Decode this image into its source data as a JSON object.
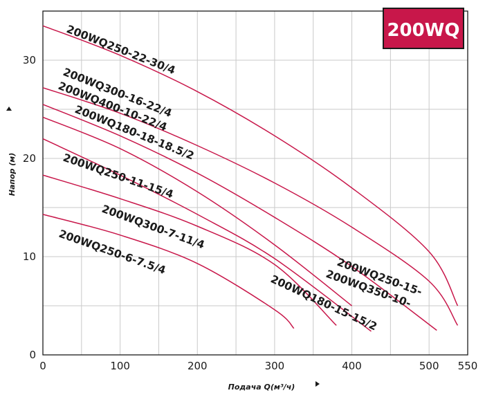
{
  "chart_data": {
    "type": "line",
    "badge": "200WQ",
    "xlabel": "Подача Q(м³/ч)",
    "ylabel": "Напор (м)",
    "xlim": [
      0,
      550
    ],
    "ylim": [
      0,
      35
    ],
    "xticks": [
      0,
      100,
      200,
      300,
      400,
      500,
      550
    ],
    "yticks": [
      0,
      10,
      20,
      30
    ],
    "grid": true,
    "line_color": "#c8174a",
    "series": [
      {
        "name": "200WQ250-22-30/4",
        "points": [
          [
            0,
            33.5
          ],
          [
            100,
            30.5
          ],
          [
            200,
            26.8
          ],
          [
            300,
            22.3
          ],
          [
            400,
            17.0
          ],
          [
            500,
            10.5
          ],
          [
            537,
            5.0
          ]
        ]
      },
      {
        "name": "200WQ300-16-22/4",
        "points": [
          [
            0,
            27.2
          ],
          [
            100,
            24.6
          ],
          [
            200,
            21.3
          ],
          [
            300,
            17.5
          ],
          [
            400,
            13.0
          ],
          [
            500,
            7.5
          ],
          [
            537,
            3.0
          ]
        ]
      },
      {
        "name": "200WQ400-10-22/4",
        "points": [
          [
            0,
            25.5
          ],
          [
            100,
            22.3
          ],
          [
            200,
            18.5
          ],
          [
            300,
            14.0
          ],
          [
            400,
            9.0
          ],
          [
            510,
            2.5
          ]
        ]
      },
      {
        "name": "200WQ180-18-18.5/2",
        "points": [
          [
            0,
            24.2
          ],
          [
            100,
            21.0
          ],
          [
            200,
            16.6
          ],
          [
            300,
            11.2
          ],
          [
            400,
            5.0
          ]
        ]
      },
      {
        "name": "200WQ250-11-15/4",
        "points": [
          [
            0,
            22.0
          ],
          [
            100,
            18.3
          ],
          [
            200,
            14.3
          ],
          [
            300,
            9.8
          ],
          [
            425,
            2.4
          ]
        ]
      },
      {
        "name": "200WQ300-7-11/4",
        "points": [
          [
            0,
            18.3
          ],
          [
            100,
            15.9
          ],
          [
            200,
            13.1
          ],
          [
            300,
            9.2
          ],
          [
            380,
            3.0
          ]
        ]
      },
      {
        "name": "200WQ250-6-7.5/4",
        "points": [
          [
            0,
            14.3
          ],
          [
            100,
            12.2
          ],
          [
            200,
            9.3
          ],
          [
            300,
            4.6
          ],
          [
            325,
            2.7
          ]
        ]
      }
    ],
    "labels": [
      {
        "text": "200WQ250-22-30/4"
      },
      {
        "text": "200WQ300-16-22/4"
      },
      {
        "text": "200WQ400-10-22/4"
      },
      {
        "text": "200WQ180-18-18.5/2"
      },
      {
        "text": "200WQ250-11-15/4"
      },
      {
        "text": "200WQ300-7-11/4"
      },
      {
        "text": "200WQ250-6-7.5/4"
      },
      {
        "text": "200WQ250-15-"
      },
      {
        "text": "200WQ350-10-"
      },
      {
        "text": "200WQ180-15-15/2"
      }
    ]
  }
}
